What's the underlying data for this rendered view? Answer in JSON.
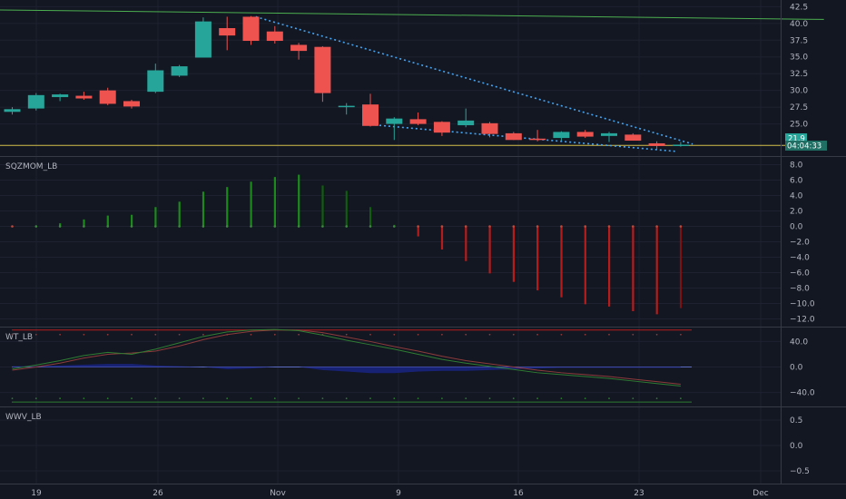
{
  "chart_data": {
    "type": "candlestick",
    "x_labels": [
      "19",
      "26",
      "Nov",
      "9",
      "16",
      "23",
      "Dec"
    ],
    "price_pane": {
      "y_ticks": [
        42.5,
        40.0,
        37.5,
        35.0,
        32.5,
        30.0,
        27.5,
        25.0
      ],
      "ylim": [
        20.2,
        43.5
      ],
      "last_price_label": "21.9",
      "countdown_label": "04:04:33",
      "candles": [
        {
          "o": 26.8,
          "h": 27.5,
          "l": 26.4,
          "c": 27.2
        },
        {
          "o": 27.3,
          "h": 29.6,
          "l": 27.0,
          "c": 29.3
        },
        {
          "o": 29.0,
          "h": 29.5,
          "l": 28.4,
          "c": 29.4
        },
        {
          "o": 29.2,
          "h": 29.8,
          "l": 28.6,
          "c": 28.8
        },
        {
          "o": 30.0,
          "h": 30.4,
          "l": 27.8,
          "c": 28.0
        },
        {
          "o": 28.4,
          "h": 28.6,
          "l": 27.3,
          "c": 27.6
        },
        {
          "o": 29.8,
          "h": 34.0,
          "l": 29.6,
          "c": 33.0
        },
        {
          "o": 32.2,
          "h": 33.8,
          "l": 32.0,
          "c": 33.6
        },
        {
          "o": 34.9,
          "h": 40.9,
          "l": 34.9,
          "c": 40.3
        },
        {
          "o": 39.3,
          "h": 41.0,
          "l": 36.0,
          "c": 38.2
        },
        {
          "o": 41.0,
          "h": 41.1,
          "l": 36.8,
          "c": 37.4
        },
        {
          "o": 38.8,
          "h": 39.6,
          "l": 37.0,
          "c": 37.4
        },
        {
          "o": 36.8,
          "h": 37.1,
          "l": 34.6,
          "c": 35.9
        },
        {
          "o": 36.5,
          "h": 36.6,
          "l": 28.3,
          "c": 29.6
        },
        {
          "o": 27.5,
          "h": 28.1,
          "l": 26.4,
          "c": 27.7
        },
        {
          "o": 27.9,
          "h": 29.5,
          "l": 24.6,
          "c": 24.7
        },
        {
          "o": 25.0,
          "h": 26.0,
          "l": 22.6,
          "c": 25.8
        },
        {
          "o": 25.7,
          "h": 26.7,
          "l": 24.8,
          "c": 25.0
        },
        {
          "o": 25.3,
          "h": 25.4,
          "l": 23.2,
          "c": 23.7
        },
        {
          "o": 24.8,
          "h": 27.3,
          "l": 24.5,
          "c": 25.5
        },
        {
          "o": 25.1,
          "h": 25.3,
          "l": 23.0,
          "c": 23.5
        },
        {
          "o": 23.6,
          "h": 23.8,
          "l": 22.6,
          "c": 22.6
        },
        {
          "o": 22.8,
          "h": 24.1,
          "l": 22.4,
          "c": 22.6
        },
        {
          "o": 22.9,
          "h": 23.9,
          "l": 22.5,
          "c": 23.8
        },
        {
          "o": 23.8,
          "h": 24.1,
          "l": 22.9,
          "c": 23.1
        },
        {
          "o": 23.2,
          "h": 23.8,
          "l": 22.3,
          "c": 23.6
        },
        {
          "o": 23.4,
          "h": 23.6,
          "l": 22.5,
          "c": 22.5
        },
        {
          "o": 22.1,
          "h": 22.4,
          "l": 21.1,
          "c": 21.7
        },
        {
          "o": 21.7,
          "h": 22.3,
          "l": 21.6,
          "c": 21.9
        }
      ],
      "trendlines": [
        {
          "style": "solid",
          "color": "#4caf50",
          "from": {
            "bar": -5,
            "y": 42.2
          },
          "to": {
            "bar": 34,
            "y": 40.6
          }
        },
        {
          "style": "solid",
          "color": "#d4c04a",
          "from": {
            "bar": -5,
            "y": 21.8
          },
          "to": {
            "bar": 34,
            "y": 21.8
          }
        },
        {
          "style": "dotted",
          "color": "#42a5f5",
          "from": {
            "bar": 10.2,
            "y": 41.0
          },
          "to": {
            "bar": 28.5,
            "y": 22.0
          }
        },
        {
          "style": "dotted",
          "color": "#42a5f5",
          "from": {
            "bar": 15,
            "y": 24.9
          },
          "to": {
            "bar": 27.8,
            "y": 20.9
          }
        }
      ]
    },
    "sqzmom_pane": {
      "label": "SQZMOM_LB",
      "y_ticks": [
        8.0,
        6.0,
        4.0,
        2.0,
        0.0,
        -2.0,
        -4.0,
        -6.0,
        -8.0,
        -10.0,
        -12.0
      ],
      "ylim": [
        -13.0,
        9.0
      ],
      "values": [
        0,
        0,
        0.4,
        0.9,
        1.4,
        1.5,
        2.5,
        3.2,
        4.5,
        5.1,
        5.8,
        6.4,
        6.7,
        5.3,
        4.6,
        2.5,
        0.2,
        -1.3,
        -3.0,
        -4.5,
        -6.1,
        -7.2,
        -8.3,
        -9.2,
        -10.1,
        -10.4,
        -11.0,
        -11.4,
        -10.6
      ],
      "colors": [
        "#8b1a1a",
        "#1b5e20",
        "#1b8a1b",
        "#1b8a1b",
        "#1b8a1b",
        "#1b8a1b",
        "#1b8a1b",
        "#1b8a1b",
        "#1b8a1b",
        "#1b8a1b",
        "#1b8a1b",
        "#1b8a1b",
        "#1b8a1b",
        "#0e5e0e",
        "#0e5e0e",
        "#0e5e0e",
        "#0e5e0e",
        "#b71c1c",
        "#b71c1c",
        "#b71c1c",
        "#b71c1c",
        "#b71c1c",
        "#b71c1c",
        "#b71c1c",
        "#b71c1c",
        "#b71c1c",
        "#b71c1c",
        "#b71c1c",
        "#7a1414"
      ]
    },
    "wt_pane": {
      "label": "WT_LB",
      "y_ticks": [
        40.0,
        0.0,
        -40.0
      ],
      "ylim": [
        -62,
        62
      ],
      "upper_level": 58,
      "lower_level": -55,
      "wt1": [
        -3,
        3,
        10,
        18,
        23,
        20,
        28,
        38,
        48,
        55,
        58,
        59,
        57,
        50,
        42,
        35,
        28,
        20,
        12,
        6,
        1,
        -4,
        -9,
        -12,
        -15,
        -18,
        -22,
        -26,
        -30
      ],
      "wt2": [
        -5,
        0,
        6,
        14,
        20,
        22,
        25,
        33,
        43,
        51,
        56,
        58,
        58,
        54,
        47,
        40,
        32,
        25,
        17,
        10,
        5,
        0,
        -5,
        -9,
        -12,
        -15,
        -19,
        -23,
        -27
      ],
      "fill": [
        1,
        1,
        2,
        3,
        4,
        4,
        2,
        1,
        0,
        -3,
        -2,
        0,
        0,
        -4,
        -6,
        -8,
        -8,
        -6,
        -5,
        -5,
        -4,
        -3,
        -2,
        -1,
        -1,
        -1,
        -1,
        -1,
        -1
      ]
    },
    "wwv_pane": {
      "label": "WWV_LB",
      "y_ticks": [
        0.5,
        0.0,
        -0.5
      ],
      "ylim": [
        -0.75,
        0.75
      ]
    }
  },
  "colors": {
    "background": "#131722",
    "up": "#26a69a",
    "down": "#ef5350",
    "grid": "#1e2230",
    "separator": "#363a45",
    "text": "#b2b5be"
  }
}
